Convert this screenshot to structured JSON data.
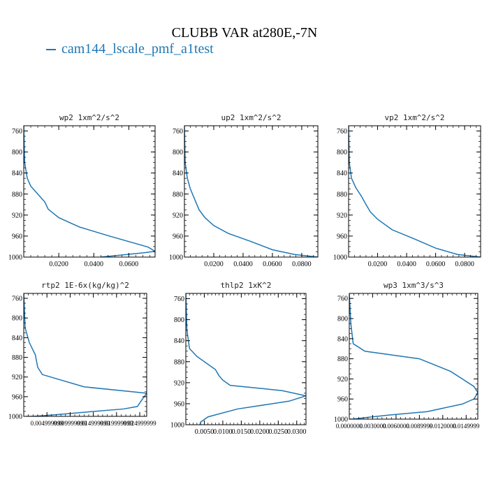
{
  "figure": {
    "title": "CLUBB VAR at280E,-7N",
    "legend": "cam144_lscale_pmf_a1test",
    "line_color": "#1f77b4"
  },
  "chart_data": [
    {
      "type": "line",
      "title": "wp2  1xm^2/s^2",
      "xlim": [
        0,
        0.075
      ],
      "ylim": [
        1000,
        750
      ],
      "xticks": [
        0.02,
        0.04,
        0.06
      ],
      "xtick_labels": [
        "0.0200",
        "0.0400",
        "0.0600"
      ],
      "yticks": [
        760,
        800,
        840,
        880,
        920,
        960,
        1000
      ],
      "ytick_labels": [
        "760",
        "800",
        "840",
        "880",
        "920",
        "960",
        "1000"
      ],
      "x": [
        0,
        0.0005,
        0.002,
        0.004,
        0.008,
        0.012,
        0.014,
        0.02,
        0.032,
        0.05,
        0.071,
        0.075,
        0.068,
        0.056,
        0.044
      ],
      "y": [
        750,
        820,
        850,
        865,
        880,
        895,
        909,
        925,
        943,
        961,
        981,
        989,
        992,
        996,
        1000
      ]
    },
    {
      "type": "line",
      "title": "up2  1xm^2/s^2",
      "xlim": [
        0,
        0.091
      ],
      "ylim": [
        1000,
        750
      ],
      "xticks": [
        0.02,
        0.04,
        0.06,
        0.08
      ],
      "xtick_labels": [
        "0.0200",
        "0.0400",
        "0.0600",
        "0.0800"
      ],
      "yticks": [
        760,
        800,
        840,
        880,
        920,
        960,
        1000
      ],
      "ytick_labels": [
        "760",
        "800",
        "840",
        "880",
        "920",
        "960",
        "1000"
      ],
      "x": [
        0,
        0.0005,
        0.002,
        0.004,
        0.007,
        0.01,
        0.014,
        0.02,
        0.03,
        0.045,
        0.06,
        0.075,
        0.091
      ],
      "y": [
        750,
        820,
        850,
        870,
        890,
        910,
        925,
        940,
        955,
        970,
        986,
        995,
        1000
      ]
    },
    {
      "type": "line",
      "title": "vp2  1xm^2/s^2",
      "xlim": [
        0,
        0.091
      ],
      "ylim": [
        1000,
        750
      ],
      "xticks": [
        0.02,
        0.04,
        0.06,
        0.08
      ],
      "xtick_labels": [
        "0.0200",
        "0.0400",
        "0.0600",
        "0.0800"
      ],
      "yticks": [
        760,
        800,
        840,
        880,
        920,
        960,
        1000
      ],
      "ytick_labels": [
        "760",
        "800",
        "840",
        "880",
        "920",
        "960",
        "1000"
      ],
      "x": [
        0,
        0.0005,
        0.002,
        0.005,
        0.009,
        0.012,
        0.015,
        0.02,
        0.03,
        0.045,
        0.06,
        0.075,
        0.091
      ],
      "y": [
        750,
        820,
        850,
        868,
        885,
        900,
        914,
        928,
        948,
        965,
        983,
        995,
        1000
      ]
    },
    {
      "type": "line",
      "title": "rtp2  1E-6x(kg/kg)^2",
      "xlim": [
        0,
        0.0265
      ],
      "ylim": [
        1000,
        750
      ],
      "xticks": [
        0.005,
        0.01,
        0.015,
        0.02,
        0.025
      ],
      "xtick_labels": [
        "0.004999999",
        "0.009999999",
        "0.014999999",
        "0.019999999",
        "0.024999999"
      ],
      "yticks": [
        760,
        800,
        840,
        880,
        920,
        960,
        1000
      ],
      "ytick_labels": [
        "760",
        "800",
        "840",
        "880",
        "920",
        "960",
        "1000"
      ],
      "x": [
        0,
        0.0003,
        0.0012,
        0.0025,
        0.003,
        0.004,
        0.013,
        0.0265,
        0.0255,
        0.0245,
        0.0215,
        0.015,
        0.009,
        0.005,
        0.002,
        0.0005
      ],
      "y": [
        750,
        820,
        850,
        875,
        900,
        915,
        940,
        953,
        966,
        980,
        985,
        990,
        995,
        998,
        1000,
        1000
      ]
    },
    {
      "type": "line",
      "title": "thlp2  1xK^2",
      "xlim": [
        0,
        0.0325
      ],
      "ylim": [
        1000,
        750
      ],
      "xticks": [
        0.005,
        0.01,
        0.015,
        0.02,
        0.025,
        0.03
      ],
      "xtick_labels": [
        "0.0050",
        "0.0100",
        "0.0150",
        "0.0200",
        "0.0250",
        "0.0300"
      ],
      "yticks": [
        760,
        800,
        840,
        880,
        920,
        960,
        1000
      ],
      "ytick_labels": [
        "760",
        "800",
        "840",
        "880",
        "920",
        "960",
        "1000"
      ],
      "x": [
        0,
        0.0003,
        0.001,
        0.003,
        0.008,
        0.009,
        0.01,
        0.012,
        0.026,
        0.0325,
        0.028,
        0.014,
        0.006,
        0.004,
        0.0038
      ],
      "y": [
        750,
        820,
        855,
        870,
        895,
        907,
        915,
        925,
        935,
        945,
        955,
        970,
        985,
        995,
        1000
      ]
    },
    {
      "type": "line",
      "title": "wp3  1xm^3/s^3",
      "xlim": [
        0,
        0.0165
      ],
      "ylim": [
        1000,
        750
      ],
      "xticks": [
        0,
        0.003,
        0.006,
        0.009,
        0.012,
        0.015
      ],
      "xtick_labels": [
        "0.0000000",
        "0.0030000",
        "0.0060000",
        "0.0089999",
        "0.0120000",
        "0.0149999"
      ],
      "yticks": [
        760,
        800,
        840,
        880,
        920,
        960,
        1000
      ],
      "ytick_labels": [
        "760",
        "800",
        "840",
        "880",
        "920",
        "960",
        "1000"
      ],
      "x": [
        0,
        0.0002,
        0.0005,
        0.002,
        0.009,
        0.013,
        0.0145,
        0.016,
        0.0165,
        0.016,
        0.0145,
        0.01,
        0.005,
        0.002,
        0.0005,
        0
      ],
      "y": [
        750,
        810,
        850,
        865,
        880,
        905,
        920,
        935,
        947,
        960,
        970,
        985,
        992,
        997,
        1000,
        1000
      ]
    }
  ]
}
